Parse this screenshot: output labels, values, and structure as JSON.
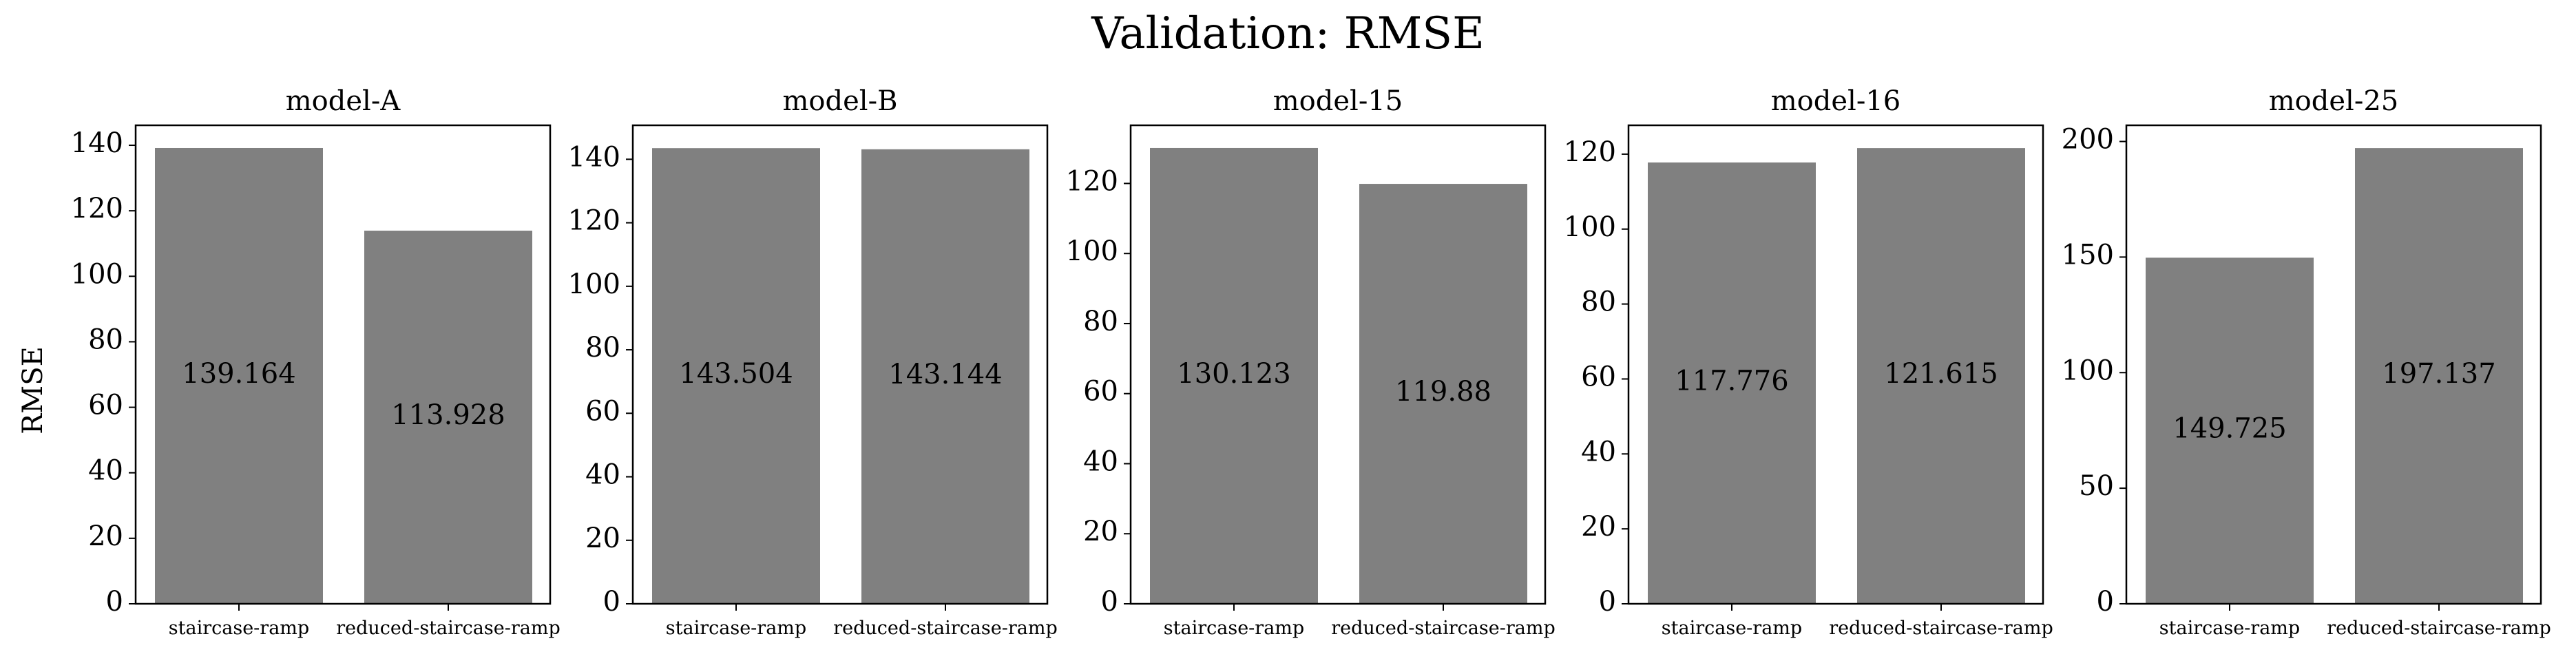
{
  "figure": {
    "title": "Validation: RMSE",
    "ylabel": "RMSE"
  },
  "colors": {
    "bar": "#808080",
    "axis": "#000000",
    "text": "#000000"
  },
  "chart_data": [
    {
      "type": "bar",
      "title": "model-A",
      "categories": [
        "staircase-ramp",
        "reduced-staircase-ramp"
      ],
      "values": [
        139.164,
        113.928
      ],
      "value_labels": [
        "139.164",
        "113.928"
      ],
      "ylabel": "RMSE",
      "ylim": [
        0,
        146.1
      ],
      "yticks": [
        0,
        20,
        40,
        60,
        80,
        100,
        120,
        140
      ]
    },
    {
      "type": "bar",
      "title": "model-B",
      "categories": [
        "staircase-ramp",
        "reduced-staircase-ramp"
      ],
      "values": [
        143.504,
        143.144
      ],
      "value_labels": [
        "143.504",
        "143.144"
      ],
      "ylabel": "",
      "ylim": [
        0,
        150.7
      ],
      "yticks": [
        0,
        20,
        40,
        60,
        80,
        100,
        120,
        140
      ]
    },
    {
      "type": "bar",
      "title": "model-15",
      "categories": [
        "staircase-ramp",
        "reduced-staircase-ramp"
      ],
      "values": [
        130.123,
        119.88
      ],
      "value_labels": [
        "130.123",
        "119.88"
      ],
      "ylabel": "",
      "ylim": [
        0,
        136.6
      ],
      "yticks": [
        0,
        20,
        40,
        60,
        80,
        100,
        120
      ]
    },
    {
      "type": "bar",
      "title": "model-16",
      "categories": [
        "staircase-ramp",
        "reduced-staircase-ramp"
      ],
      "values": [
        117.776,
        121.615
      ],
      "value_labels": [
        "117.776",
        "121.615"
      ],
      "ylabel": "",
      "ylim": [
        0,
        127.7
      ],
      "yticks": [
        0,
        20,
        40,
        60,
        80,
        100,
        120
      ]
    },
    {
      "type": "bar",
      "title": "model-25",
      "categories": [
        "staircase-ramp",
        "reduced-staircase-ramp"
      ],
      "values": [
        149.725,
        197.137
      ],
      "value_labels": [
        "149.725",
        "197.137"
      ],
      "ylabel": "",
      "ylim": [
        0,
        207.0
      ],
      "yticks": [
        0,
        50,
        100,
        150,
        200
      ]
    }
  ]
}
